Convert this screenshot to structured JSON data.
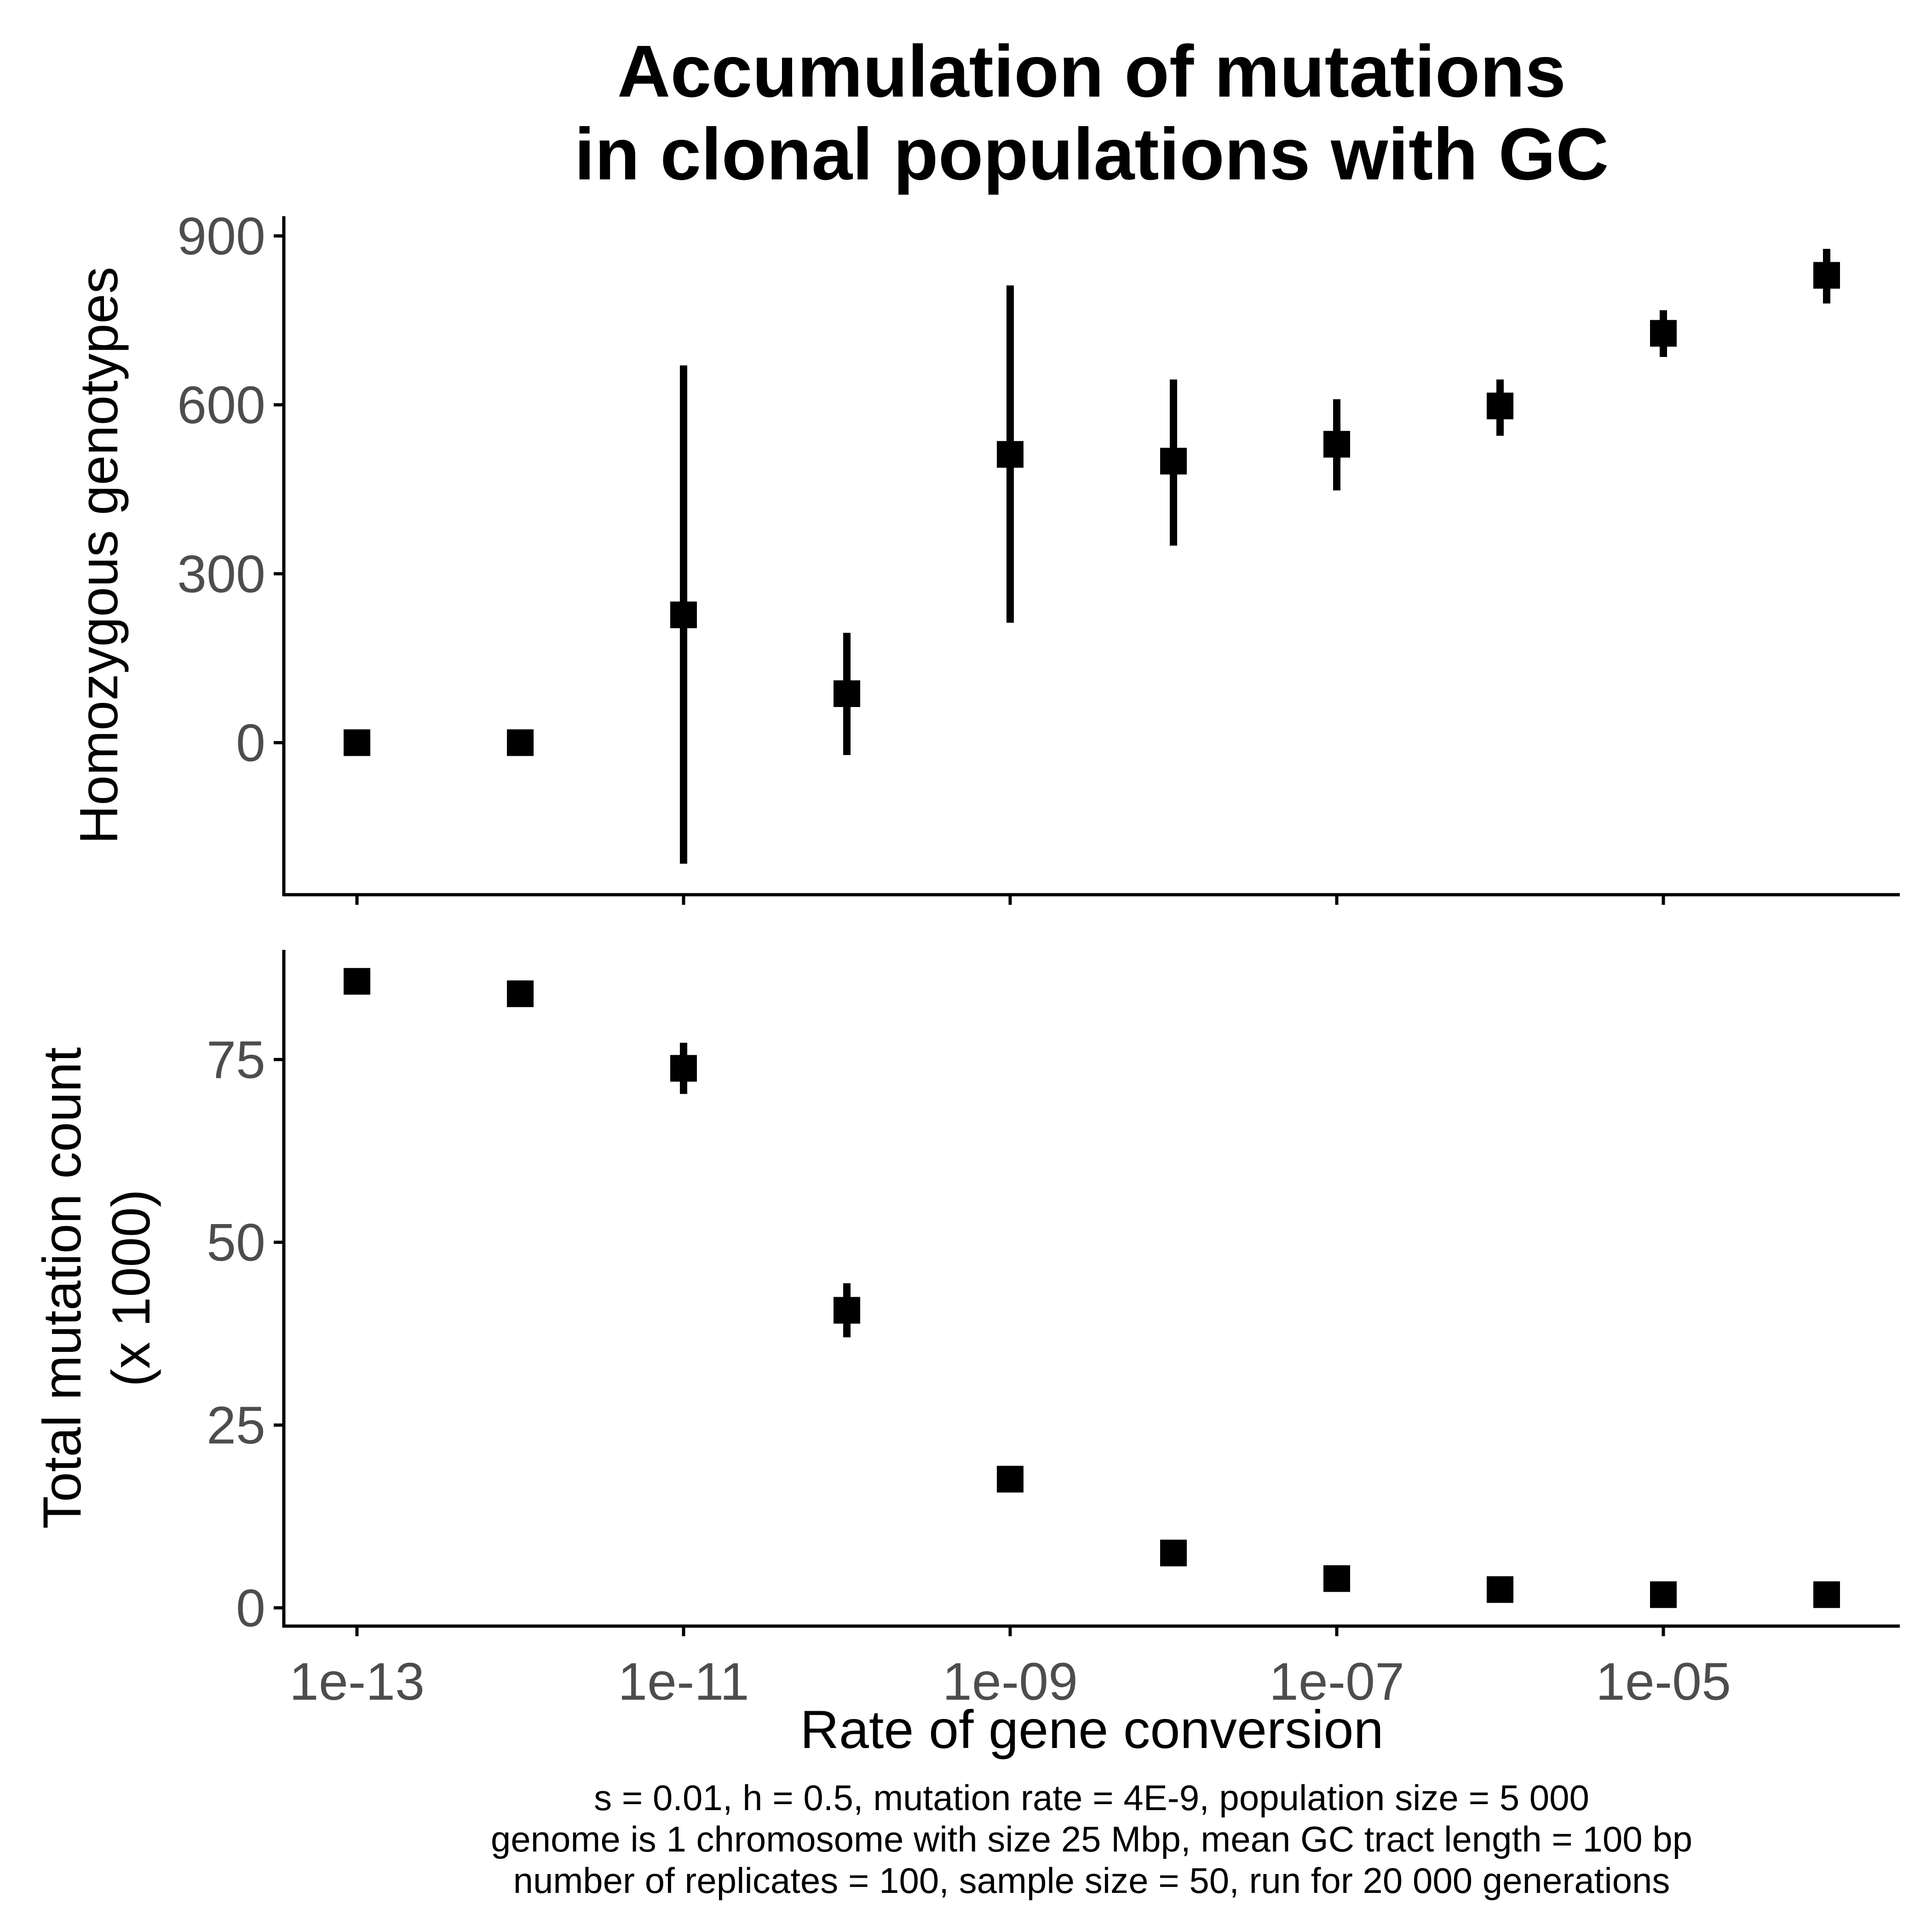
{
  "title": [
    "Accumulation of mutations",
    "in clonal populations with GC"
  ],
  "caption": [
    "s = 0.01, h = 0.5, mutation rate = 4E-9, population size = 5 000",
    "genome is 1 chromosome with size 25 Mbp, mean GC tract length = 100 bp",
    "number of replicates = 100, sample size = 50, run for 20 000 generations"
  ],
  "chart_data": [
    {
      "type": "scatter",
      "panel": "top",
      "ylabel": "Homozygous genotypes",
      "xlabel": "",
      "xscale": "log10",
      "xlim": [
        4.5e-14,
        0.00035
      ],
      "ylim": [
        -270,
        935
      ],
      "yticks": [
        0,
        300,
        600,
        900
      ],
      "ytick_labels": [
        "0",
        "300",
        "600",
        "900"
      ],
      "grid": false,
      "error_bars": true,
      "x": [
        1e-13,
        1e-12,
        1e-11,
        1e-10,
        1e-09,
        1e-08,
        1e-07,
        1e-06,
        1e-05,
        0.0001
      ],
      "y": [
        0,
        0,
        227,
        87,
        512,
        500,
        530,
        598,
        727,
        830
      ],
      "y_low": [
        0,
        0,
        -215,
        -22,
        213,
        350,
        448,
        545,
        685,
        780
      ],
      "y_high": [
        0,
        0,
        670,
        195,
        812,
        645,
        610,
        645,
        768,
        877
      ]
    },
    {
      "type": "scatter",
      "panel": "bottom",
      "ylabel": [
        "Total mutation count",
        "(x 1000)"
      ],
      "xlabel": "Rate of gene conversion",
      "xscale": "log10",
      "xlim": [
        4.5e-14,
        0.00035
      ],
      "ylim": [
        -2.5,
        90
      ],
      "yticks": [
        0,
        25,
        50,
        75
      ],
      "ytick_labels": [
        "0",
        "25",
        "50",
        "75"
      ],
      "xticks": [
        1e-13,
        1e-11,
        1e-09,
        1e-07,
        1e-05
      ],
      "xtick_labels": [
        "1e-13",
        "1e-11",
        "1e-09",
        "1e-07",
        "1e-05"
      ],
      "grid": false,
      "error_bars": true,
      "x": [
        1e-13,
        1e-12,
        1e-11,
        1e-10,
        1e-09,
        1e-08,
        1e-07,
        1e-06,
        1e-05,
        0.0001
      ],
      "y": [
        85.7,
        84.0,
        73.8,
        40.7,
        17.6,
        7.5,
        4.0,
        2.5,
        1.8,
        1.8
      ],
      "y_low": [
        85.7,
        84.0,
        70.3,
        37.0,
        17.6,
        7.5,
        4.0,
        2.5,
        1.8,
        1.8
      ],
      "y_high": [
        85.7,
        84.0,
        77.3,
        44.4,
        17.6,
        7.5,
        4.0,
        2.5,
        1.8,
        1.8
      ]
    }
  ]
}
